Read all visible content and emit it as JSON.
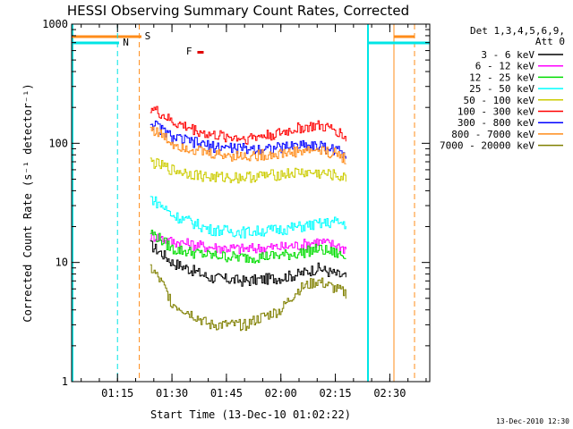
{
  "chart_data": {
    "type": "line",
    "title": "HESSI Observing Summary Count Rates, Corrected",
    "xlabel": "Start Time (13-Dec-10 01:02:22)",
    "ylabel": "Corrected Count Rate (s⁻¹ detector⁻¹)",
    "yscale": "log",
    "ylim": [
      1,
      1000
    ],
    "xlim": [
      "01:02:22",
      "02:41"
    ],
    "y_ticks": [
      "1",
      "10",
      "100",
      "1000"
    ],
    "x_ticks": [
      "01:15",
      "01:30",
      "01:45",
      "02:00",
      "02:15",
      "02:30"
    ],
    "legend_header": [
      "Det 1,3,4,5,6,9,",
      "Att 0"
    ],
    "legend_position": "right",
    "footer": "13-Dec-2010 12:30",
    "markers": [
      {
        "label": "N",
        "time": "01:15",
        "color": "#00e5e5"
      },
      {
        "label": "S",
        "time": "01:21",
        "color": "#ff8c1a"
      },
      {
        "label": "F",
        "time": "01:37",
        "color": "#e00000"
      }
    ],
    "series": [
      {
        "name": "3 - 6 keV",
        "color": "#000000",
        "times": [
          "01:24",
          "01:30",
          "01:40",
          "01:50",
          "02:00",
          "02:05",
          "02:10",
          "02:15",
          "02:18"
        ],
        "values": [
          14,
          10,
          7.5,
          7,
          7.5,
          8,
          9,
          8,
          7.5
        ]
      },
      {
        "name": "6 - 12 keV",
        "color": "#ff00ff",
        "times": [
          "01:24",
          "01:30",
          "01:40",
          "01:50",
          "02:00",
          "02:05",
          "02:10",
          "02:15",
          "02:18"
        ],
        "values": [
          17,
          15,
          13.5,
          13,
          13.5,
          14,
          15,
          14,
          13
        ]
      },
      {
        "name": "12 - 25 keV",
        "color": "#00dd00",
        "times": [
          "01:24",
          "01:30",
          "01:40",
          "01:50",
          "02:00",
          "02:05",
          "02:10",
          "02:15",
          "02:18"
        ],
        "values": [
          18,
          13,
          11.5,
          11,
          11.5,
          12,
          13,
          12,
          11
        ]
      },
      {
        "name": "25 - 50 keV",
        "color": "#00ffff",
        "times": [
          "01:24",
          "01:30",
          "01:40",
          "01:50",
          "02:00",
          "02:05",
          "02:10",
          "02:15",
          "02:18"
        ],
        "values": [
          35,
          25,
          19,
          18,
          19,
          20,
          21,
          22,
          21
        ]
      },
      {
        "name": "50 - 100 keV",
        "color": "#cccc00",
        "times": [
          "01:24",
          "01:30",
          "01:40",
          "01:50",
          "02:00",
          "02:05",
          "02:10",
          "02:15",
          "02:18"
        ],
        "values": [
          70,
          60,
          52,
          52,
          55,
          57,
          56,
          54,
          50
        ]
      },
      {
        "name": "100 - 300 keV",
        "color": "#ff0000",
        "times": [
          "01:24",
          "01:30",
          "01:40",
          "01:50",
          "02:00",
          "02:05",
          "02:10",
          "02:15",
          "02:18"
        ],
        "values": [
          200,
          150,
          118,
          110,
          122,
          135,
          140,
          130,
          110
        ]
      },
      {
        "name": "300 - 800 keV",
        "color": "#0000ff",
        "times": [
          "01:24",
          "01:30",
          "01:40",
          "01:50",
          "02:00",
          "02:05",
          "02:10",
          "02:15",
          "02:18"
        ],
        "values": [
          150,
          112,
          95,
          90,
          92,
          98,
          96,
          88,
          80
        ]
      },
      {
        "name": "800 - 7000 keV",
        "color": "#ff8c1a",
        "times": [
          "01:24",
          "01:30",
          "01:40",
          "01:50",
          "02:00",
          "02:05",
          "02:10",
          "02:15",
          "02:18"
        ],
        "values": [
          135,
          100,
          82,
          78,
          82,
          86,
          88,
          82,
          74
        ]
      },
      {
        "name": "7000 - 20000 keV",
        "color": "#808000",
        "times": [
          "01:24",
          "01:30",
          "01:40",
          "01:50",
          "02:00",
          "02:05",
          "02:10",
          "02:15",
          "02:18"
        ],
        "values": [
          9,
          4.5,
          3,
          3,
          4,
          6,
          7,
          6,
          5.5
        ]
      }
    ],
    "grid": false
  }
}
